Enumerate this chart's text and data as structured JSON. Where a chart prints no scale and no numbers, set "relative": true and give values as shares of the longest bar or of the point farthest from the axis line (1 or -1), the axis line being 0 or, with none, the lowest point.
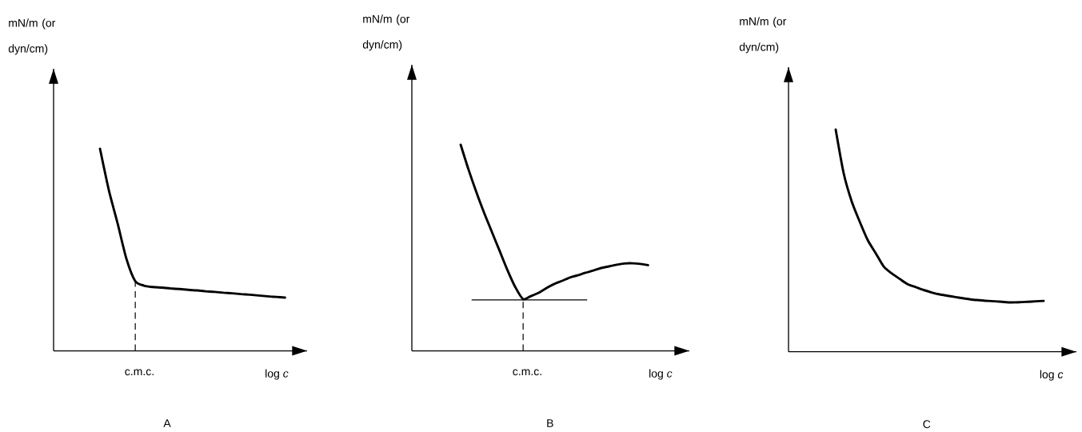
{
  "chart_data": [
    {
      "type": "line",
      "relative": true,
      "title": "A",
      "xlabel": "log *c*",
      "ylabel": "mN/m (or dyn/cm)",
      "line_style": "solid",
      "categories": [
        null,
        null,
        null,
        null,
        null,
        null,
        null,
        null,
        null,
        null,
        null,
        null,
        null,
        null,
        null,
        null,
        null,
        null,
        null,
        null,
        null,
        null
      ],
      "series": [
        {
          "color": "#000000",
          "values": [
            1.0,
            0.796,
            0.63,
            0.455,
            0.345,
            0.323,
            0.316,
            0.313,
            0.309,
            0.306,
            0.302,
            0.299,
            0.295,
            0.292,
            0.288,
            0.285,
            0.281,
            0.278,
            0.274,
            0.27,
            0.267,
            0.264
          ]
        }
      ],
      "annotations": [
        "c.m.c."
      ]
    },
    {
      "type": "line",
      "relative": true,
      "title": "B",
      "xlabel": "log *c*",
      "ylabel": "mN/m (or dyn/cm)",
      "line_style": "solid",
      "categories": [
        null,
        null,
        null,
        null,
        null,
        null,
        null,
        null,
        null,
        null,
        null,
        null,
        null,
        null,
        null,
        null,
        null,
        null,
        null,
        null,
        null,
        null,
        null,
        null,
        null
      ],
      "annotations": [
        "c.m.c."
      ],
      "series": [
        {
          "color": "#000000",
          "values": [
            1.0,
            0.88,
            0.771,
            0.67,
            0.577,
            0.484,
            0.391,
            0.309,
            0.251,
            0.266,
            0.282,
            0.305,
            0.325,
            0.34,
            0.356,
            0.367,
            0.379,
            0.39,
            0.402,
            0.41,
            0.418,
            0.424,
            0.425,
            0.422,
            0.416
          ]
        }
      ],
      "ref_lines": [
        {
          "axis": "y",
          "value": 0.247,
          "line_style": "solid"
        }
      ]
    },
    {
      "type": "line",
      "relative": true,
      "title": "C",
      "xlabel": "log *c*",
      "ylabel": "mN/m (or dyn/cm)",
      "line_style": "solid",
      "categories": [
        null,
        null,
        null,
        null,
        null,
        null,
        null,
        null,
        null,
        null,
        null,
        null,
        null,
        null,
        null,
        null,
        null,
        null,
        null,
        null,
        null,
        null,
        null,
        null,
        null,
        null,
        null
      ],
      "series": [
        {
          "color": "#000000",
          "values": [
            1.0,
            0.803,
            0.677,
            0.586,
            0.503,
            0.444,
            0.384,
            0.353,
            0.328,
            0.304,
            0.291,
            0.278,
            0.267,
            0.258,
            0.252,
            0.246,
            0.24,
            0.235,
            0.232,
            0.229,
            0.227,
            0.224,
            0.222,
            0.223,
            0.225,
            0.227,
            0.229
          ]
        }
      ]
    }
  ]
}
